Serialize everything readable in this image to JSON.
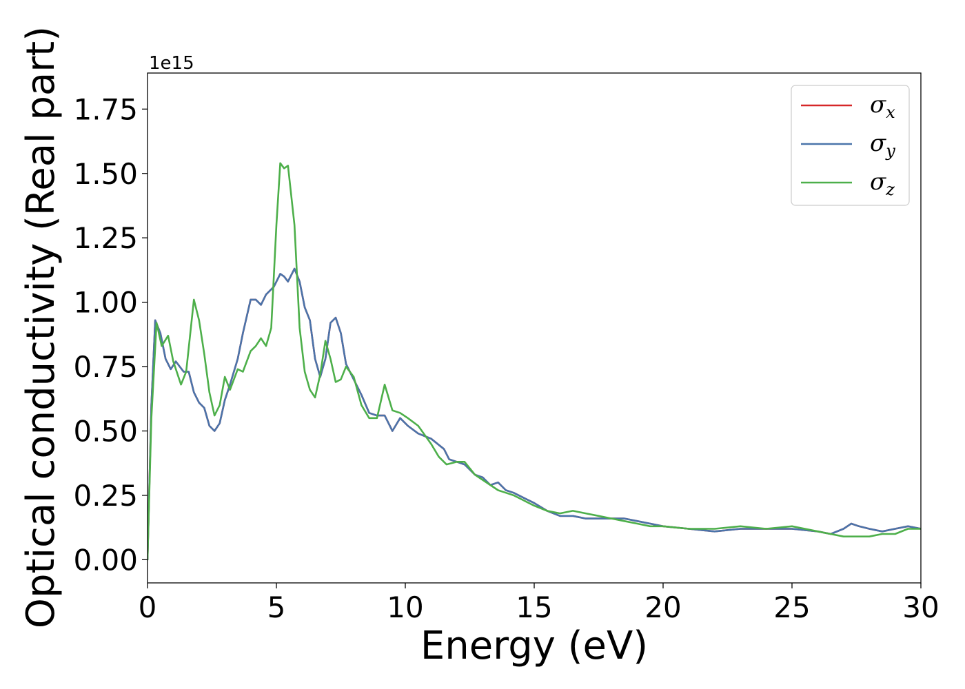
{
  "chart_data": {
    "type": "line",
    "xlabel": "Energy (eV)",
    "ylabel": "Optical conductivity (Real part)",
    "y_offset_text": "1e15",
    "xlim": [
      0,
      30
    ],
    "ylim": [
      -0.09,
      1.89
    ],
    "x_ticks": [
      0,
      5,
      10,
      15,
      20,
      25,
      30
    ],
    "x_tick_labels": [
      "0",
      "5",
      "10",
      "15",
      "20",
      "25",
      "30"
    ],
    "y_ticks": [
      0.0,
      0.25,
      0.5,
      0.75,
      1.0,
      1.25,
      1.5,
      1.75
    ],
    "y_tick_labels": [
      "0.00",
      "0.25",
      "0.50",
      "0.75",
      "1.00",
      "1.25",
      "1.50",
      "1.75"
    ],
    "grid": false,
    "legend_position": "top-right",
    "series": [
      {
        "name": "σx",
        "legend_symbol": "σ",
        "legend_sub": "x",
        "color": "#d62728",
        "points": [
          [
            0,
            0.0
          ],
          [
            0.15,
            0.6
          ],
          [
            0.3,
            0.93
          ],
          [
            0.5,
            0.88
          ],
          [
            0.7,
            0.78
          ],
          [
            0.9,
            0.74
          ],
          [
            1.1,
            0.77
          ],
          [
            1.4,
            0.73
          ],
          [
            1.6,
            0.73
          ],
          [
            1.8,
            0.65
          ],
          [
            2.0,
            0.61
          ],
          [
            2.2,
            0.59
          ],
          [
            2.4,
            0.52
          ],
          [
            2.6,
            0.5
          ],
          [
            2.8,
            0.53
          ],
          [
            3.0,
            0.62
          ],
          [
            3.2,
            0.68
          ],
          [
            3.5,
            0.78
          ],
          [
            3.7,
            0.88
          ],
          [
            4.0,
            1.01
          ],
          [
            4.2,
            1.01
          ],
          [
            4.4,
            0.99
          ],
          [
            4.6,
            1.03
          ],
          [
            4.9,
            1.06
          ],
          [
            5.15,
            1.11
          ],
          [
            5.3,
            1.1
          ],
          [
            5.45,
            1.08
          ],
          [
            5.7,
            1.13
          ],
          [
            5.9,
            1.08
          ],
          [
            6.1,
            0.98
          ],
          [
            6.3,
            0.93
          ],
          [
            6.5,
            0.78
          ],
          [
            6.7,
            0.71
          ],
          [
            6.9,
            0.78
          ],
          [
            7.1,
            0.92
          ],
          [
            7.3,
            0.94
          ],
          [
            7.5,
            0.88
          ],
          [
            7.7,
            0.76
          ],
          [
            8.0,
            0.7
          ],
          [
            8.3,
            0.64
          ],
          [
            8.6,
            0.57
          ],
          [
            8.9,
            0.56
          ],
          [
            9.2,
            0.56
          ],
          [
            9.5,
            0.5
          ],
          [
            9.8,
            0.55
          ],
          [
            10.1,
            0.52
          ],
          [
            10.5,
            0.49
          ],
          [
            11.0,
            0.47
          ],
          [
            11.5,
            0.43
          ],
          [
            11.7,
            0.39
          ],
          [
            12.0,
            0.38
          ],
          [
            12.3,
            0.37
          ],
          [
            12.7,
            0.33
          ],
          [
            13.0,
            0.32
          ],
          [
            13.3,
            0.29
          ],
          [
            13.6,
            0.3
          ],
          [
            13.9,
            0.27
          ],
          [
            14.2,
            0.26
          ],
          [
            14.6,
            0.24
          ],
          [
            15.0,
            0.22
          ],
          [
            15.5,
            0.19
          ],
          [
            16.0,
            0.17
          ],
          [
            16.5,
            0.17
          ],
          [
            17.0,
            0.16
          ],
          [
            17.5,
            0.16
          ],
          [
            18.0,
            0.16
          ],
          [
            18.5,
            0.16
          ],
          [
            19.0,
            0.15
          ],
          [
            19.5,
            0.14
          ],
          [
            20.0,
            0.13
          ],
          [
            21.0,
            0.12
          ],
          [
            22.0,
            0.11
          ],
          [
            23.0,
            0.12
          ],
          [
            24.0,
            0.12
          ],
          [
            25.0,
            0.12
          ],
          [
            26.0,
            0.11
          ],
          [
            26.5,
            0.1
          ],
          [
            27.0,
            0.12
          ],
          [
            27.3,
            0.14
          ],
          [
            27.6,
            0.13
          ],
          [
            28.0,
            0.12
          ],
          [
            28.5,
            0.11
          ],
          [
            29.0,
            0.12
          ],
          [
            29.5,
            0.13
          ],
          [
            30.0,
            0.12
          ]
        ]
      },
      {
        "name": "σy",
        "legend_symbol": "σ",
        "legend_sub": "y",
        "color": "#4a74aa",
        "points": [
          [
            0,
            0.0
          ],
          [
            0.15,
            0.6
          ],
          [
            0.3,
            0.93
          ],
          [
            0.5,
            0.88
          ],
          [
            0.7,
            0.78
          ],
          [
            0.9,
            0.74
          ],
          [
            1.1,
            0.77
          ],
          [
            1.4,
            0.73
          ],
          [
            1.6,
            0.73
          ],
          [
            1.8,
            0.65
          ],
          [
            2.0,
            0.61
          ],
          [
            2.2,
            0.59
          ],
          [
            2.4,
            0.52
          ],
          [
            2.6,
            0.5
          ],
          [
            2.8,
            0.53
          ],
          [
            3.0,
            0.62
          ],
          [
            3.2,
            0.68
          ],
          [
            3.5,
            0.78
          ],
          [
            3.7,
            0.88
          ],
          [
            4.0,
            1.01
          ],
          [
            4.2,
            1.01
          ],
          [
            4.4,
            0.99
          ],
          [
            4.6,
            1.03
          ],
          [
            4.9,
            1.06
          ],
          [
            5.15,
            1.11
          ],
          [
            5.3,
            1.1
          ],
          [
            5.45,
            1.08
          ],
          [
            5.7,
            1.13
          ],
          [
            5.9,
            1.08
          ],
          [
            6.1,
            0.98
          ],
          [
            6.3,
            0.93
          ],
          [
            6.5,
            0.78
          ],
          [
            6.7,
            0.71
          ],
          [
            6.9,
            0.78
          ],
          [
            7.1,
            0.92
          ],
          [
            7.3,
            0.94
          ],
          [
            7.5,
            0.88
          ],
          [
            7.7,
            0.76
          ],
          [
            8.0,
            0.7
          ],
          [
            8.3,
            0.64
          ],
          [
            8.6,
            0.57
          ],
          [
            8.9,
            0.56
          ],
          [
            9.2,
            0.56
          ],
          [
            9.5,
            0.5
          ],
          [
            9.8,
            0.55
          ],
          [
            10.1,
            0.52
          ],
          [
            10.5,
            0.49
          ],
          [
            11.0,
            0.47
          ],
          [
            11.5,
            0.43
          ],
          [
            11.7,
            0.39
          ],
          [
            12.0,
            0.38
          ],
          [
            12.3,
            0.37
          ],
          [
            12.7,
            0.33
          ],
          [
            13.0,
            0.32
          ],
          [
            13.3,
            0.29
          ],
          [
            13.6,
            0.3
          ],
          [
            13.9,
            0.27
          ],
          [
            14.2,
            0.26
          ],
          [
            14.6,
            0.24
          ],
          [
            15.0,
            0.22
          ],
          [
            15.5,
            0.19
          ],
          [
            16.0,
            0.17
          ],
          [
            16.5,
            0.17
          ],
          [
            17.0,
            0.16
          ],
          [
            17.5,
            0.16
          ],
          [
            18.0,
            0.16
          ],
          [
            18.5,
            0.16
          ],
          [
            19.0,
            0.15
          ],
          [
            19.5,
            0.14
          ],
          [
            20.0,
            0.13
          ],
          [
            21.0,
            0.12
          ],
          [
            22.0,
            0.11
          ],
          [
            23.0,
            0.12
          ],
          [
            24.0,
            0.12
          ],
          [
            25.0,
            0.12
          ],
          [
            26.0,
            0.11
          ],
          [
            26.5,
            0.1
          ],
          [
            27.0,
            0.12
          ],
          [
            27.3,
            0.14
          ],
          [
            27.6,
            0.13
          ],
          [
            28.0,
            0.12
          ],
          [
            28.5,
            0.11
          ],
          [
            29.0,
            0.12
          ],
          [
            29.5,
            0.13
          ],
          [
            30.0,
            0.12
          ]
        ]
      },
      {
        "name": "σz",
        "legend_symbol": "σ",
        "legend_sub": "z",
        "color": "#4daf4a",
        "points": [
          [
            0,
            0.0
          ],
          [
            0.15,
            0.55
          ],
          [
            0.35,
            0.92
          ],
          [
            0.55,
            0.83
          ],
          [
            0.8,
            0.87
          ],
          [
            1.0,
            0.77
          ],
          [
            1.3,
            0.68
          ],
          [
            1.5,
            0.73
          ],
          [
            1.8,
            1.01
          ],
          [
            2.0,
            0.93
          ],
          [
            2.2,
            0.8
          ],
          [
            2.4,
            0.65
          ],
          [
            2.6,
            0.56
          ],
          [
            2.8,
            0.6
          ],
          [
            3.0,
            0.71
          ],
          [
            3.2,
            0.66
          ],
          [
            3.5,
            0.74
          ],
          [
            3.7,
            0.73
          ],
          [
            4.0,
            0.81
          ],
          [
            4.2,
            0.83
          ],
          [
            4.4,
            0.86
          ],
          [
            4.6,
            0.83
          ],
          [
            4.8,
            0.9
          ],
          [
            5.0,
            1.3
          ],
          [
            5.15,
            1.54
          ],
          [
            5.3,
            1.52
          ],
          [
            5.45,
            1.53
          ],
          [
            5.7,
            1.3
          ],
          [
            5.9,
            0.9
          ],
          [
            6.1,
            0.73
          ],
          [
            6.3,
            0.66
          ],
          [
            6.5,
            0.63
          ],
          [
            6.7,
            0.72
          ],
          [
            6.9,
            0.85
          ],
          [
            7.1,
            0.78
          ],
          [
            7.3,
            0.69
          ],
          [
            7.5,
            0.7
          ],
          [
            7.7,
            0.75
          ],
          [
            8.0,
            0.71
          ],
          [
            8.3,
            0.6
          ],
          [
            8.6,
            0.55
          ],
          [
            8.9,
            0.55
          ],
          [
            9.2,
            0.68
          ],
          [
            9.5,
            0.58
          ],
          [
            9.8,
            0.57
          ],
          [
            10.1,
            0.55
          ],
          [
            10.5,
            0.52
          ],
          [
            11.0,
            0.45
          ],
          [
            11.3,
            0.4
          ],
          [
            11.6,
            0.37
          ],
          [
            12.0,
            0.38
          ],
          [
            12.3,
            0.38
          ],
          [
            12.7,
            0.33
          ],
          [
            13.0,
            0.31
          ],
          [
            13.3,
            0.29
          ],
          [
            13.6,
            0.27
          ],
          [
            13.9,
            0.26
          ],
          [
            14.2,
            0.25
          ],
          [
            14.6,
            0.23
          ],
          [
            15.0,
            0.21
          ],
          [
            15.5,
            0.19
          ],
          [
            16.0,
            0.18
          ],
          [
            16.5,
            0.19
          ],
          [
            17.0,
            0.18
          ],
          [
            17.5,
            0.17
          ],
          [
            18.0,
            0.16
          ],
          [
            18.5,
            0.15
          ],
          [
            19.0,
            0.14
          ],
          [
            19.5,
            0.13
          ],
          [
            20.0,
            0.13
          ],
          [
            21.0,
            0.12
          ],
          [
            22.0,
            0.12
          ],
          [
            23.0,
            0.13
          ],
          [
            24.0,
            0.12
          ],
          [
            25.0,
            0.13
          ],
          [
            25.5,
            0.12
          ],
          [
            26.0,
            0.11
          ],
          [
            26.5,
            0.1
          ],
          [
            27.0,
            0.09
          ],
          [
            27.5,
            0.09
          ],
          [
            28.0,
            0.09
          ],
          [
            28.5,
            0.1
          ],
          [
            29.0,
            0.1
          ],
          [
            29.5,
            0.12
          ],
          [
            30.0,
            0.12
          ]
        ]
      }
    ]
  }
}
